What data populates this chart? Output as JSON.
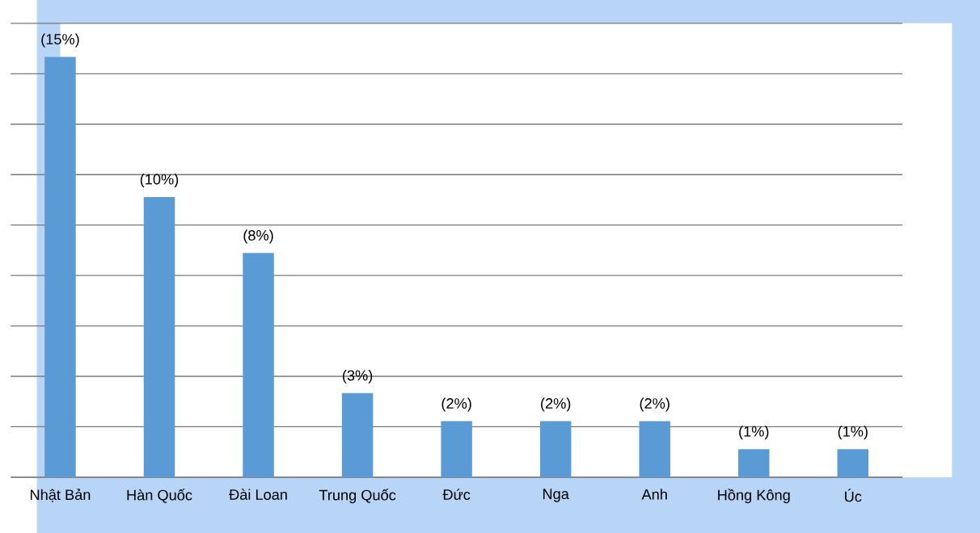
{
  "chart_data": {
    "type": "bar",
    "categories": [
      "Nhật Bản",
      "Hàn Quốc",
      "Đài Loan",
      "Trung Quốc",
      "Đức",
      "Nga",
      "Anh",
      "Hồng Kông",
      "Úc"
    ],
    "values": [
      15,
      10,
      8,
      3,
      2,
      2,
      2,
      1,
      1
    ],
    "value_labels": [
      "(15%)",
      "(10%)",
      "(8%)",
      "(3%)",
      "(2%)",
      "(2%)",
      "(2%)",
      "(1%)",
      "(1%)"
    ],
    "color": "#5b9bd5",
    "ylim": [
      0,
      16.2
    ],
    "yticks": [
      {
        "value": 0,
        "label": null
      },
      {
        "value": 1.8,
        "label": null
      },
      {
        "value": 3.6,
        "label": null
      },
      {
        "value": 5.4,
        "label": null
      },
      {
        "value": 7.2,
        "label": null
      },
      {
        "value": 9,
        "label": null
      },
      {
        "value": 10.8,
        "label": null
      },
      {
        "value": 12.6,
        "label": null
      },
      {
        "value": 14.4,
        "label": null
      },
      {
        "value": 16.2,
        "label": null
      }
    ],
    "grid": "y",
    "tick_labels": "x"
  }
}
